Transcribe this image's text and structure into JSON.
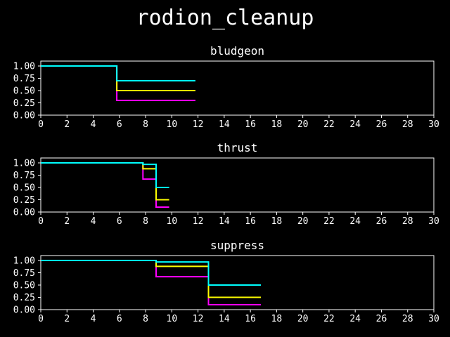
{
  "figure": {
    "title": "rodion_cleanup",
    "background": "#000000"
  },
  "chart_data": [
    {
      "type": "line",
      "title": "bludgeon",
      "xlim": [
        0,
        30
      ],
      "ylim": [
        0,
        1.1
      ],
      "xticks": [
        "0",
        "2",
        "4",
        "6",
        "8",
        "10",
        "12",
        "14",
        "16",
        "18",
        "20",
        "22",
        "24",
        "26",
        "28",
        "30"
      ],
      "yticks": [
        "0.00",
        "0.25",
        "0.50",
        "0.75",
        "1.00"
      ],
      "series": [
        {
          "color": "#ff00ff",
          "step": [
            [
              0,
              1.0
            ],
            [
              5.8,
              1.0
            ],
            [
              5.8,
              0.3
            ],
            [
              11.8,
              0.3
            ]
          ]
        },
        {
          "color": "#ffff00",
          "step": [
            [
              0,
              1.0
            ],
            [
              5.8,
              1.0
            ],
            [
              5.8,
              0.5
            ],
            [
              11.8,
              0.5
            ]
          ]
        },
        {
          "color": "#00ffff",
          "step": [
            [
              0,
              1.0
            ],
            [
              5.8,
              1.0
            ],
            [
              5.8,
              0.7
            ],
            [
              11.8,
              0.7
            ]
          ]
        }
      ]
    },
    {
      "type": "line",
      "title": "thrust",
      "xlim": [
        0,
        30
      ],
      "ylim": [
        0,
        1.1
      ],
      "xticks": [
        "0",
        "2",
        "4",
        "6",
        "8",
        "10",
        "12",
        "14",
        "16",
        "18",
        "20",
        "22",
        "24",
        "26",
        "28",
        "30"
      ],
      "yticks": [
        "0.00",
        "0.25",
        "0.50",
        "0.75",
        "1.00"
      ],
      "series": [
        {
          "color": "#ff00ff",
          "step": [
            [
              0,
              1.0
            ],
            [
              7.8,
              1.0
            ],
            [
              7.8,
              0.67
            ],
            [
              8.8,
              0.67
            ],
            [
              8.8,
              0.1
            ],
            [
              9.8,
              0.1
            ]
          ]
        },
        {
          "color": "#ffff00",
          "step": [
            [
              0,
              1.0
            ],
            [
              7.8,
              1.0
            ],
            [
              7.8,
              0.88
            ],
            [
              8.8,
              0.88
            ],
            [
              8.8,
              0.25
            ],
            [
              9.8,
              0.25
            ]
          ]
        },
        {
          "color": "#00ffff",
          "step": [
            [
              0,
              1.0
            ],
            [
              7.8,
              1.0
            ],
            [
              7.8,
              0.97
            ],
            [
              8.8,
              0.97
            ],
            [
              8.8,
              0.5
            ],
            [
              9.8,
              0.5
            ]
          ]
        }
      ]
    },
    {
      "type": "line",
      "title": "suppress",
      "xlim": [
        0,
        30
      ],
      "ylim": [
        0,
        1.1
      ],
      "xticks": [
        "0",
        "2",
        "4",
        "6",
        "8",
        "10",
        "12",
        "14",
        "16",
        "18",
        "20",
        "22",
        "24",
        "26",
        "28",
        "30"
      ],
      "yticks": [
        "0.00",
        "0.25",
        "0.50",
        "0.75",
        "1.00"
      ],
      "series": [
        {
          "color": "#ff00ff",
          "step": [
            [
              0,
              1.0
            ],
            [
              8.8,
              1.0
            ],
            [
              8.8,
              0.67
            ],
            [
              12.8,
              0.67
            ],
            [
              12.8,
              0.1
            ],
            [
              16.8,
              0.1
            ]
          ]
        },
        {
          "color": "#ffff00",
          "step": [
            [
              0,
              1.0
            ],
            [
              8.8,
              1.0
            ],
            [
              8.8,
              0.88
            ],
            [
              12.8,
              0.88
            ],
            [
              12.8,
              0.25
            ],
            [
              16.8,
              0.25
            ]
          ]
        },
        {
          "color": "#00ffff",
          "step": [
            [
              0,
              1.0
            ],
            [
              8.8,
              1.0
            ],
            [
              8.8,
              0.97
            ],
            [
              12.8,
              0.97
            ],
            [
              12.8,
              0.5
            ],
            [
              16.8,
              0.5
            ]
          ]
        }
      ]
    }
  ]
}
